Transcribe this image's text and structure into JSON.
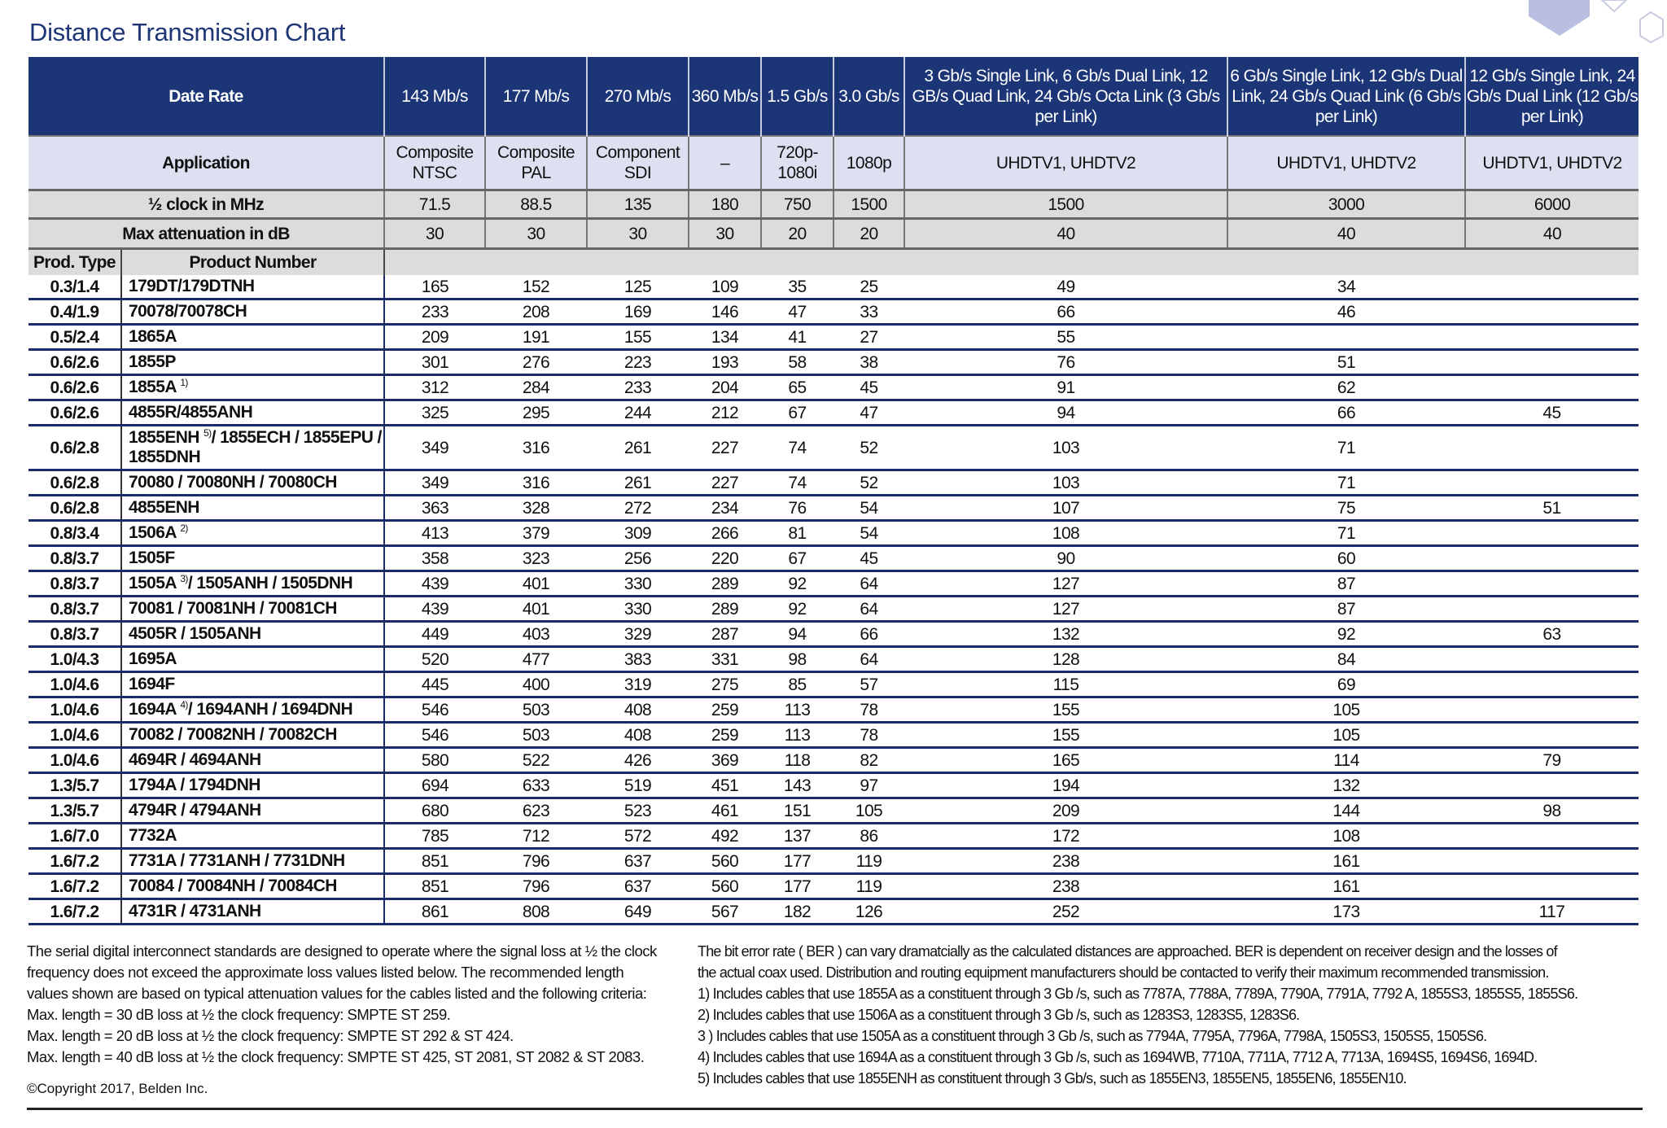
{
  "title": "Distance Transmission Chart",
  "colors": {
    "header_navy": "#1b3577",
    "application_bg": "#dde0f0",
    "gray_bg": "#dcdcdc",
    "row_rule": "#1b2a6b"
  },
  "header": {
    "data_rate_label": "Date Rate",
    "application_label": "Application",
    "half_clock_label": "½ clock in MHz",
    "max_atten_label": "Max attenuation in dB",
    "prod_type_label": "Prod. Type",
    "product_number_label": "Product Number",
    "columns": [
      {
        "rate": "143 Mb/s",
        "application": "Composite NTSC",
        "half_clock": "71.5",
        "max_atten": "30"
      },
      {
        "rate": "177 Mb/s",
        "application": "Composite PAL",
        "half_clock": "88.5",
        "max_atten": "30"
      },
      {
        "rate": "270 Mb/s",
        "application": "Component SDI",
        "half_clock": "135",
        "max_atten": "30"
      },
      {
        "rate": "360 Mb/s",
        "application": "–",
        "half_clock": "180",
        "max_atten": "30"
      },
      {
        "rate": "1.5 Gb/s",
        "application": "720p-1080i",
        "half_clock": "750",
        "max_atten": "20"
      },
      {
        "rate": "3.0 Gb/s",
        "application": "1080p",
        "half_clock": "1500",
        "max_atten": "20"
      },
      {
        "rate": "3 Gb/s Single Link, 6 Gb/s Dual Link, 12 GB/s Quad Link, 24 Gb/s Octa Link (3 Gb/s per Link)",
        "application": "UHDTV1, UHDTV2",
        "half_clock": "1500",
        "max_atten": "40"
      },
      {
        "rate": "6 Gb/s Single Link, 12 Gb/s Dual Link, 24 Gb/s Quad Link (6 Gb/s per Link)",
        "application": "UHDTV1, UHDTV2",
        "half_clock": "3000",
        "max_atten": "40"
      },
      {
        "rate": "12 Gb/s Single Link, 24 Gb/s Dual Link (12 Gb/s per Link)",
        "application": "UHDTV1, UHDTV2",
        "half_clock": "6000",
        "max_atten": "40"
      }
    ]
  },
  "rows": [
    {
      "type": "0.3/1.4",
      "product": "179DT/179DTNH",
      "note": "",
      "post": "",
      "values": [
        "165",
        "152",
        "125",
        "109",
        "35",
        "25",
        "49",
        "34",
        ""
      ]
    },
    {
      "type": "0.4/1.9",
      "product": "70078/70078CH",
      "note": "",
      "post": "",
      "values": [
        "233",
        "208",
        "169",
        "146",
        "47",
        "33",
        "66",
        "46",
        ""
      ]
    },
    {
      "type": "0.5/2.4",
      "product": "1865A",
      "note": "",
      "post": "",
      "values": [
        "209",
        "191",
        "155",
        "134",
        "41",
        "27",
        "55",
        "",
        ""
      ]
    },
    {
      "type": "0.6/2.6",
      "product": "1855P",
      "note": "",
      "post": "",
      "values": [
        "301",
        "276",
        "223",
        "193",
        "58",
        "38",
        "76",
        "51",
        ""
      ]
    },
    {
      "type": "0.6/2.6",
      "product": "1855A",
      "note": "1)",
      "post": "",
      "values": [
        "312",
        "284",
        "233",
        "204",
        "65",
        "45",
        "91",
        "62",
        ""
      ]
    },
    {
      "type": "0.6/2.6",
      "product": "4855R/4855ANH",
      "note": "",
      "post": "",
      "values": [
        "325",
        "295",
        "244",
        "212",
        "67",
        "47",
        "94",
        "66",
        "45"
      ]
    },
    {
      "type": "0.6/2.8",
      "product": "1855ENH",
      "note": "5)",
      "post": "/ 1855ECH / 1855EPU / 1855DNH",
      "values": [
        "349",
        "316",
        "261",
        "227",
        "74",
        "52",
        "103",
        "71",
        ""
      ]
    },
    {
      "type": "0.6/2.8",
      "product": "70080 / 70080NH / 70080CH",
      "note": "",
      "post": "",
      "values": [
        "349",
        "316",
        "261",
        "227",
        "74",
        "52",
        "103",
        "71",
        ""
      ]
    },
    {
      "type": "0.6/2.8",
      "product": "4855ENH",
      "note": "",
      "post": "",
      "values": [
        "363",
        "328",
        "272",
        "234",
        "76",
        "54",
        "107",
        "75",
        "51"
      ]
    },
    {
      "type": "0.8/3.4",
      "product": "1506A",
      "note": "2)",
      "post": "",
      "values": [
        "413",
        "379",
        "309",
        "266",
        "81",
        "54",
        "108",
        "71",
        ""
      ]
    },
    {
      "type": "0.8/3.7",
      "product": "1505F",
      "note": "",
      "post": "",
      "values": [
        "358",
        "323",
        "256",
        "220",
        "67",
        "45",
        "90",
        "60",
        ""
      ]
    },
    {
      "type": "0.8/3.7",
      "product": "1505A",
      "note": "3)",
      "post": "/ 1505ANH / 1505DNH",
      "values": [
        "439",
        "401",
        "330",
        "289",
        "92",
        "64",
        "127",
        "87",
        ""
      ]
    },
    {
      "type": "0.8/3.7",
      "product": "70081 / 70081NH / 70081CH",
      "note": "",
      "post": "",
      "values": [
        "439",
        "401",
        "330",
        "289",
        "92",
        "64",
        "127",
        "87",
        ""
      ]
    },
    {
      "type": "0.8/3.7",
      "product": "4505R / 1505ANH",
      "note": "",
      "post": "",
      "values": [
        "449",
        "403",
        "329",
        "287",
        "94",
        "66",
        "132",
        "92",
        "63"
      ]
    },
    {
      "type": "1.0/4.3",
      "product": "1695A",
      "note": "",
      "post": "",
      "values": [
        "520",
        "477",
        "383",
        "331",
        "98",
        "64",
        "128",
        "84",
        ""
      ]
    },
    {
      "type": "1.0/4.6",
      "product": "1694F",
      "note": "",
      "post": "",
      "values": [
        "445",
        "400",
        "319",
        "275",
        "85",
        "57",
        "115",
        "69",
        ""
      ]
    },
    {
      "type": "1.0/4.6",
      "product": "1694A",
      "note": "4)",
      "post": "/ 1694ANH / 1694DNH",
      "values": [
        "546",
        "503",
        "408",
        "259",
        "113",
        "78",
        "155",
        "105",
        ""
      ]
    },
    {
      "type": "1.0/4.6",
      "product": "70082 / 70082NH / 70082CH",
      "note": "",
      "post": "",
      "values": [
        "546",
        "503",
        "408",
        "259",
        "113",
        "78",
        "155",
        "105",
        ""
      ]
    },
    {
      "type": "1.0/4.6",
      "product": "4694R / 4694ANH",
      "note": "",
      "post": "",
      "values": [
        "580",
        "522",
        "426",
        "369",
        "118",
        "82",
        "165",
        "114",
        "79"
      ]
    },
    {
      "type": "1.3/5.7",
      "product": "1794A / 1794DNH",
      "note": "",
      "post": "",
      "values": [
        "694",
        "633",
        "519",
        "451",
        "143",
        "97",
        "194",
        "132",
        ""
      ]
    },
    {
      "type": "1.3/5.7",
      "product": "4794R / 4794ANH",
      "note": "",
      "post": "",
      "values": [
        "680",
        "623",
        "523",
        "461",
        "151",
        "105",
        "209",
        "144",
        "98"
      ]
    },
    {
      "type": "1.6/7.0",
      "product": "7732A",
      "note": "",
      "post": "",
      "values": [
        "785",
        "712",
        "572",
        "492",
        "137",
        "86",
        "172",
        "108",
        ""
      ]
    },
    {
      "type": "1.6/7.2",
      "product": "7731A / 7731ANH / 7731DNH",
      "note": "",
      "post": "",
      "values": [
        "851",
        "796",
        "637",
        "560",
        "177",
        "119",
        "238",
        "161",
        ""
      ]
    },
    {
      "type": "1.6/7.2",
      "product": "70084 / 70084NH / 70084CH",
      "note": "",
      "post": "",
      "values": [
        "851",
        "796",
        "637",
        "560",
        "177",
        "119",
        "238",
        "161",
        ""
      ]
    },
    {
      "type": "1.6/7.2",
      "product": "4731R / 4731ANH",
      "note": "",
      "post": "",
      "values": [
        "861",
        "808",
        "649",
        "567",
        "182",
        "126",
        "252",
        "173",
        "117"
      ]
    }
  ],
  "notes_left": [
    "The serial digital interconnect standards are designed to operate where the signal loss at ½ the clock",
    "frequency does not exceed the approximate loss values listed below. The recommended length",
    "values shown are based on typical attenuation values for the cables listed and the following criteria:",
    "Max. length = 30 dB loss at ½ the clock frequency: SMPTE ST 259.",
    "Max. length = 20 dB loss at ½ the clock frequency: SMPTE ST 292 & ST 424.",
    "Max. length = 40 dB loss at ½ the clock frequency: SMPTE ST 425, ST 2081, ST 2082 & ST 2083."
  ],
  "copyright": "©Copyright 2017, Belden Inc.",
  "notes_right": [
    "The bit error rate ( BER ) can vary dramatcially as the calculated distances are approached. BER is dependent on receiver design and the losses of",
    "the actual coax used. Distribution and routing equipment manufacturers should be contacted to verify their maximum recommended transmission.",
    "1) Includes cables that use 1855A as a constituent through 3 Gb /s, such as 7787A, 7788A, 7789A, 7790A, 7791A, 7792 A, 1855S3, 1855S5, 1855S6.",
    "2) Includes cables that use 1506A as a constituent through 3 Gb /s, such as 1283S3, 1283S5, 1283S6.",
    "3 ) Includes cables that use 1505A as a constituent through 3 Gb /s, such as 7794A, 7795A, 7796A, 7798A, 1505S3, 1505S5, 1505S6.",
    "4) Includes cables that use 1694A as a constituent through 3 Gb /s, such as 1694WB, 7710A, 7711A, 7712 A, 7713A, 1694S5, 1694S6, 1694D.",
    "5) Includes cables that use 1855ENH as constituent through 3 Gb/s, such as 1855EN3, 1855EN5, 1855EN6, 1855EN10."
  ]
}
